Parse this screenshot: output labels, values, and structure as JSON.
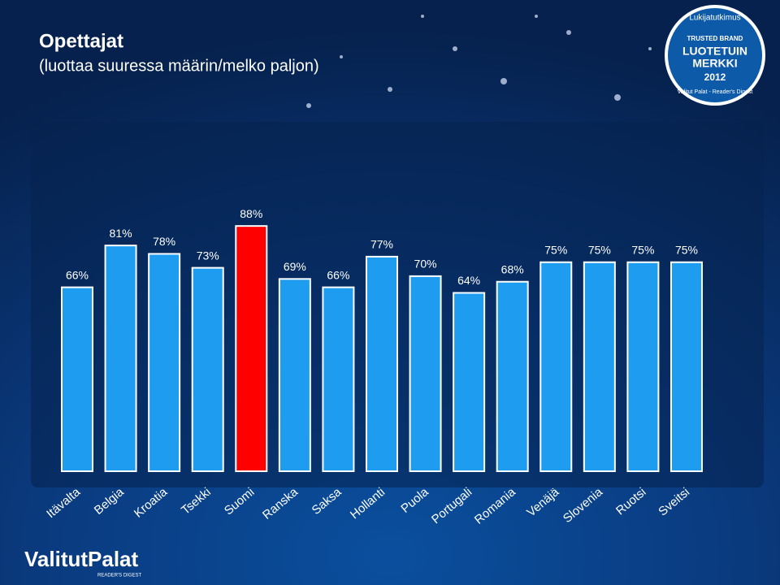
{
  "chart_data": {
    "type": "bar",
    "title": "Opettajat",
    "subtitle": "(luottaa suuressa määrin/melko paljon)",
    "categories": [
      "Itävalta",
      "Belgia",
      "Kroatia",
      "Tsekki",
      "Suomi",
      "Ranska",
      "Saksa",
      "Hollanti",
      "Puola",
      "Portugali",
      "Romania",
      "Venäjä",
      "Slovenia",
      "Ruotsi",
      "Sveitsi"
    ],
    "values": [
      66,
      81,
      78,
      73,
      88,
      69,
      66,
      77,
      70,
      64,
      68,
      75,
      75,
      75,
      75
    ],
    "value_labels": [
      "66%",
      "81%",
      "78%",
      "73%",
      "88%",
      "69%",
      "66%",
      "77%",
      "70%",
      "64%",
      "68%",
      "75%",
      "75%",
      "75%",
      "75%"
    ],
    "colors": [
      "#1e9cf0",
      "#1e9cf0",
      "#1e9cf0",
      "#1e9cf0",
      "#ff0000",
      "#1e9cf0",
      "#1e9cf0",
      "#1e9cf0",
      "#1e9cf0",
      "#1e9cf0",
      "#1e9cf0",
      "#1e9cf0",
      "#1e9cf0",
      "#1e9cf0",
      "#1e9cf0"
    ],
    "ylim": [
      0,
      100
    ]
  },
  "badge": {
    "top": "Lukijatutkimus",
    "brand": "TRUSTED BRAND",
    "line1": "LUOTETUIN",
    "line2": "MERKKI",
    "year": "2012",
    "bottom": "Valitut Palat - Reader's Digest"
  },
  "logo": {
    "name": "ValitutPalat",
    "sub": "READER'S DIGEST"
  }
}
